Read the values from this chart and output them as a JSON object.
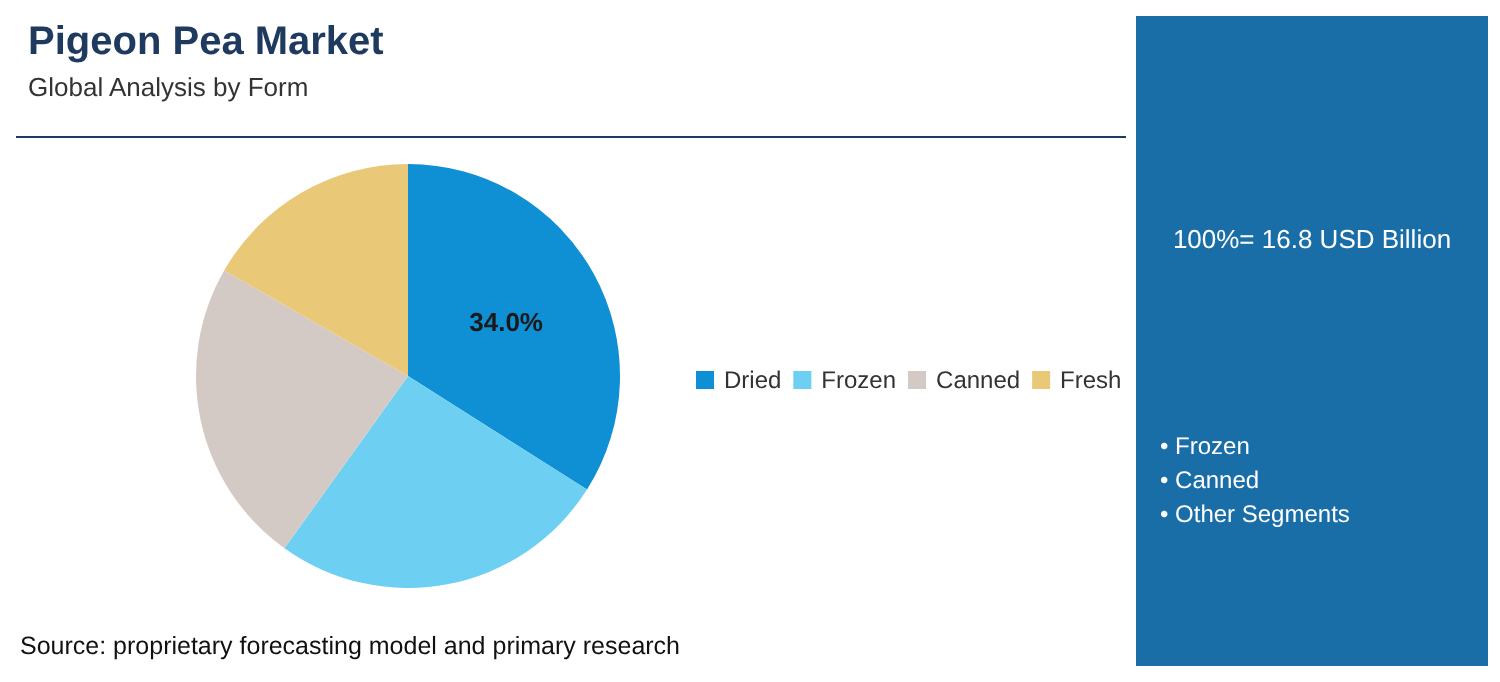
{
  "chart_data": {
    "type": "pie",
    "title": "Pigeon Pea Market",
    "subtitle": "Global Analysis by Form",
    "categories": [
      "Dried",
      "Frozen",
      "Canned",
      "Fresh"
    ],
    "values": [
      34.0,
      25.9,
      23.4,
      16.7
    ],
    "colors": [
      "#0f8fd4",
      "#6dcff2",
      "#d4cac5",
      "#e9c878"
    ],
    "value_labels": [
      "34.0%",
      null,
      null,
      null
    ],
    "legend": "right",
    "annotations": [
      "100%= 16.8 USD Billion",
      "• Frozen",
      "• Canned",
      "• Other Segments",
      "Source: proprietary forecasting model and primary research"
    ]
  }
}
